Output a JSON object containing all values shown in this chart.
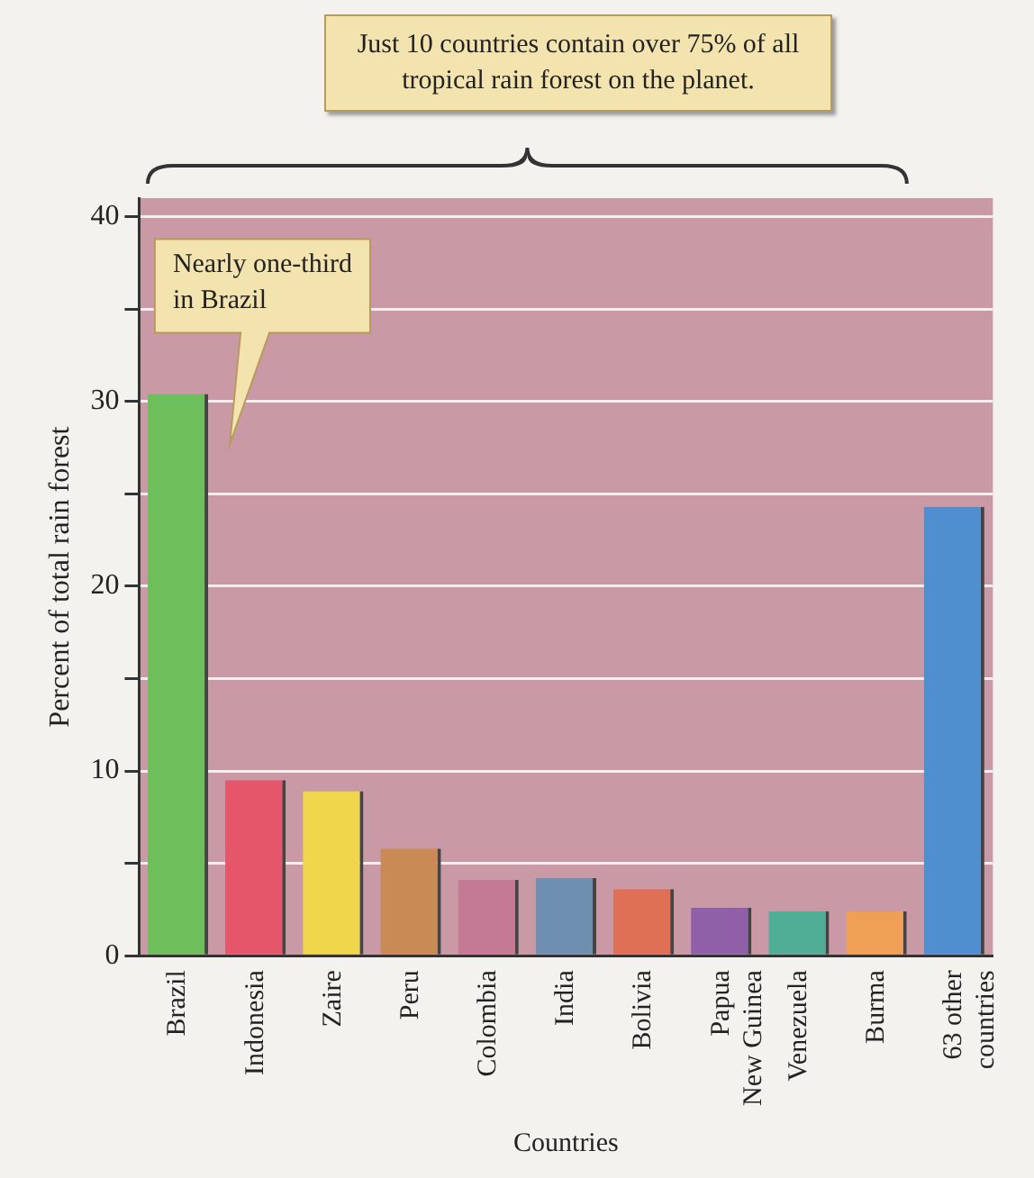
{
  "chart_data": {
    "type": "bar",
    "title": "Just 10 countries contain over 75% of all tropical rain forest on the planet.",
    "xlabel": "Countries",
    "ylabel": "Percent of total rain forest",
    "categories": [
      "Brazil",
      "Indonesia",
      "Zaire",
      "Peru",
      "Colombia",
      "India",
      "Bolivia",
      "Papua\nNew Guinea",
      "Venezuela",
      "Burma",
      "63 other\ncountries"
    ],
    "values": [
      30.4,
      9.5,
      8.9,
      5.8,
      4.1,
      4.2,
      3.6,
      2.6,
      2.4,
      2.4,
      24.3
    ],
    "colors": [
      "#6cbf5a",
      "#e5566a",
      "#efd64a",
      "#c98a55",
      "#c47a94",
      "#6f8fb0",
      "#e07055",
      "#8f5fa8",
      "#4fae95",
      "#f0a055",
      "#4f8fd0"
    ],
    "ylim": [
      0,
      41
    ],
    "yticks": [
      0,
      {
        "value": 5,
        "label": null
      },
      10,
      {
        "value": 15,
        "label": null
      },
      20,
      {
        "value": 25,
        "label": null
      },
      30,
      {
        "value": 35,
        "label": null
      },
      40
    ],
    "grid": "y",
    "legend": false,
    "annotations": [
      "Nearly one-third\nin Brazil"
    ]
  }
}
